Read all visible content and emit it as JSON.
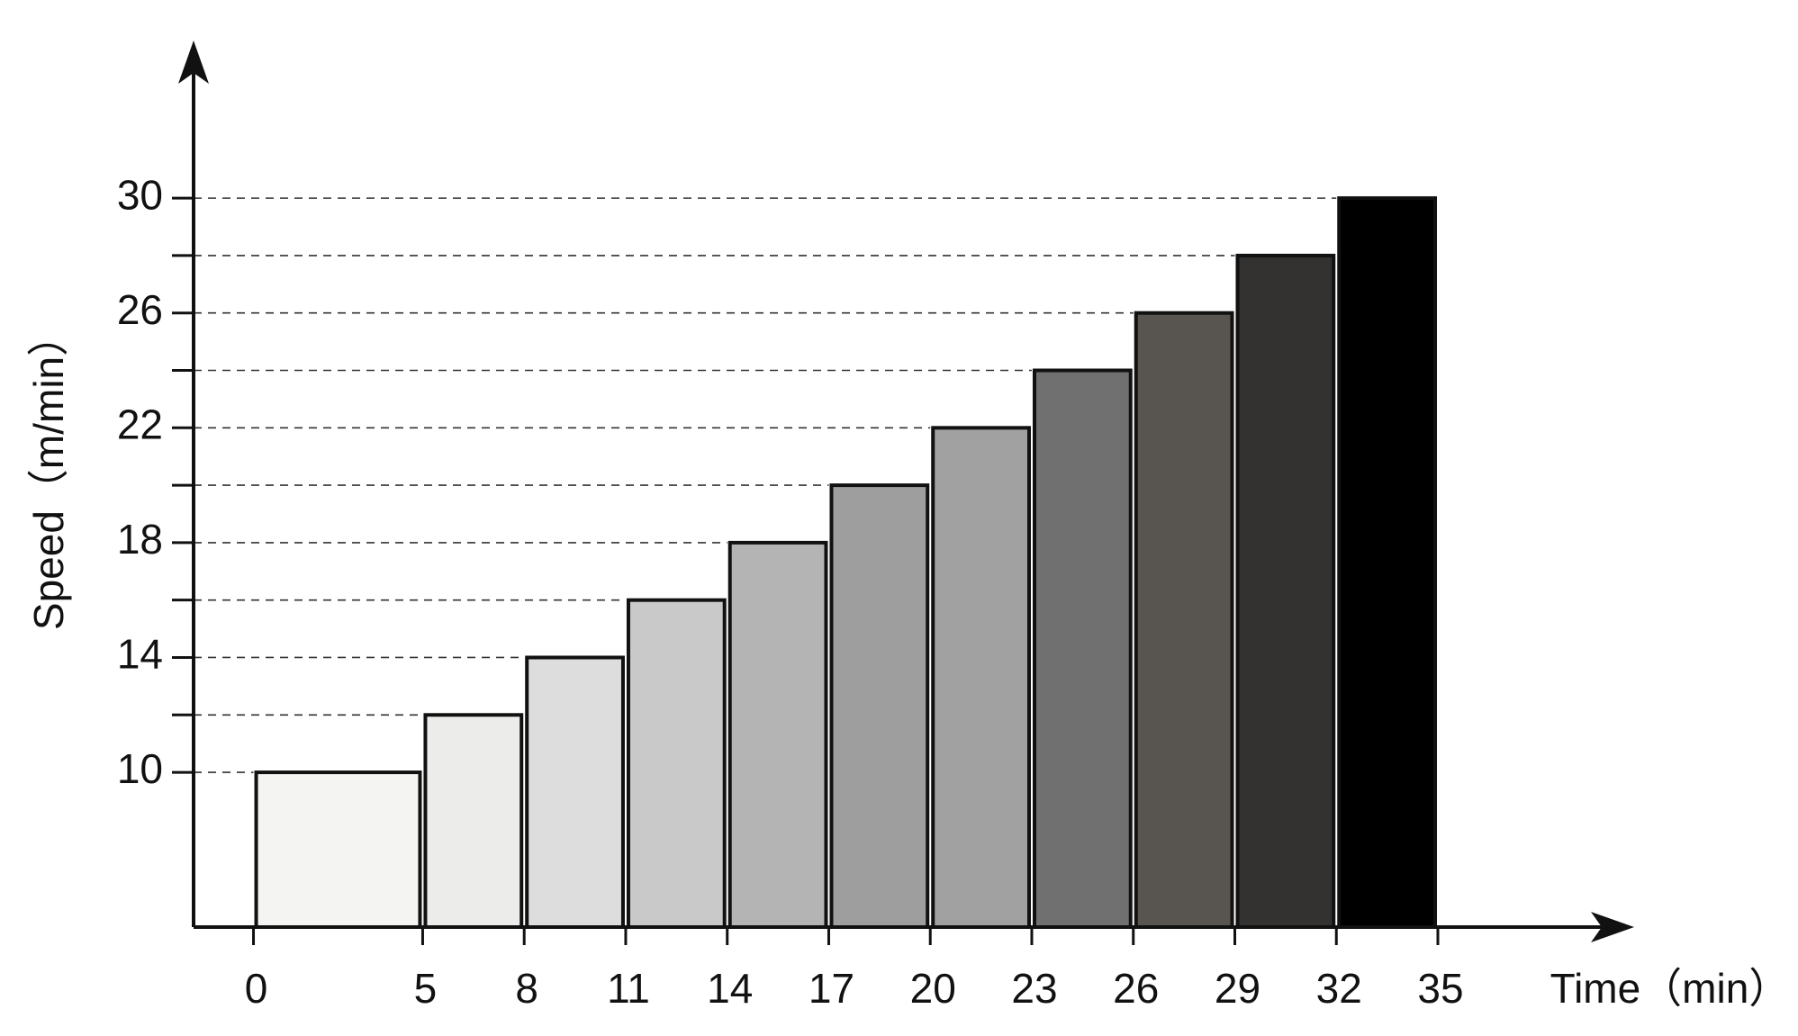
{
  "chart_data": {
    "type": "histogram",
    "x_label": "Time（min）",
    "y_label": "Speed（m/min）",
    "bins": [
      0,
      5,
      8,
      11,
      14,
      17,
      20,
      23,
      26,
      29,
      32,
      35
    ],
    "values": [
      10,
      12,
      14,
      16,
      18,
      20,
      22,
      24,
      26,
      28,
      30
    ],
    "colors": [
      "#f4f5f3",
      "#ececea",
      "#dcdddc",
      "#c8c9c8",
      "#b3b4b3",
      "#9d9e9d",
      "#a0a1a0",
      "#707070",
      "#58544f",
      "#333230",
      "#000000"
    ],
    "xlim": [
      -1.77,
      40.8
    ],
    "ylim": [
      4.61,
      35.49
    ],
    "xticks": [
      0,
      5,
      8,
      11,
      14,
      17,
      20,
      23,
      26,
      29,
      32,
      35
    ],
    "yticks": [
      10,
      14,
      18,
      22,
      26,
      30
    ],
    "yminorticks": [
      12,
      16,
      20,
      24,
      28
    ],
    "grid": true
  }
}
